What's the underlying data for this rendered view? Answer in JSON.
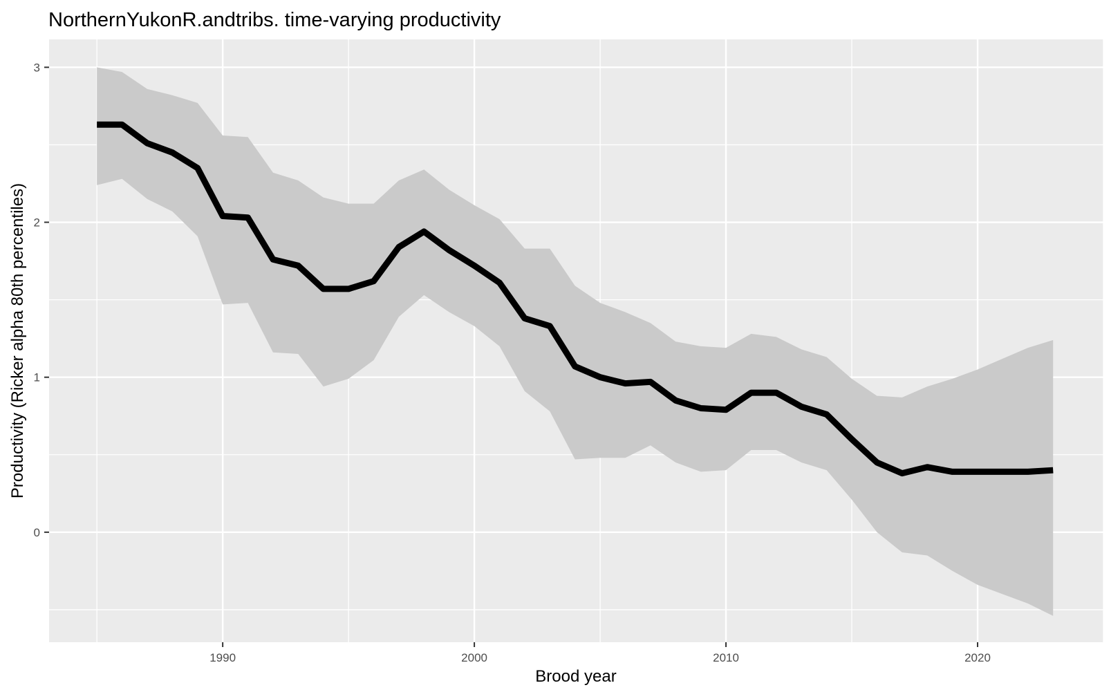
{
  "chart_data": {
    "type": "line",
    "title": "NorthernYukonR.andtribs. time-varying productivity",
    "xlabel": "Brood year",
    "ylabel": "Productivity (Ricker alpha 80th percentiles)",
    "xlim": [
      1983.1,
      2025.0
    ],
    "ylim": [
      -0.71,
      3.18
    ],
    "x_ticks": [
      1990,
      2000,
      2010,
      2020
    ],
    "y_ticks": [
      0,
      1,
      2,
      3
    ],
    "grid": true,
    "legend": "none",
    "colors": {
      "panel": "#ebebeb",
      "grid": "#ffffff",
      "ribbon": "#cacaca",
      "line": "#000000",
      "tick_text": "#4d4d4d"
    },
    "x": [
      1985,
      1986,
      1987,
      1988,
      1989,
      1990,
      1991,
      1992,
      1993,
      1994,
      1995,
      1996,
      1997,
      1998,
      1999,
      2000,
      2001,
      2002,
      2003,
      2004,
      2005,
      2006,
      2007,
      2008,
      2009,
      2010,
      2011,
      2012,
      2013,
      2014,
      2015,
      2016,
      2017,
      2018,
      2019,
      2020,
      2021,
      2022,
      2023
    ],
    "series": [
      {
        "role": "median",
        "values": [
          2.63,
          2.63,
          2.51,
          2.45,
          2.35,
          2.04,
          2.03,
          1.76,
          1.72,
          1.57,
          1.57,
          1.62,
          1.84,
          1.94,
          1.82,
          1.72,
          1.61,
          1.38,
          1.33,
          1.07,
          1.0,
          0.96,
          0.97,
          0.85,
          0.8,
          0.79,
          0.9,
          0.9,
          0.81,
          0.76,
          0.6,
          0.45,
          0.38,
          0.42,
          0.39,
          0.39,
          0.39,
          0.39,
          0.4
        ]
      },
      {
        "role": "lower_80",
        "values": [
          2.24,
          2.28,
          2.15,
          2.07,
          1.91,
          1.47,
          1.48,
          1.16,
          1.15,
          0.94,
          0.99,
          1.11,
          1.39,
          1.53,
          1.42,
          1.33,
          1.2,
          0.91,
          0.78,
          0.47,
          0.48,
          0.48,
          0.56,
          0.45,
          0.39,
          0.4,
          0.53,
          0.53,
          0.45,
          0.4,
          0.21,
          0.0,
          -0.13,
          -0.15,
          -0.25,
          -0.34,
          -0.4,
          -0.46,
          -0.54
        ]
      },
      {
        "role": "upper_80",
        "values": [
          3.0,
          2.97,
          2.86,
          2.82,
          2.77,
          2.56,
          2.55,
          2.32,
          2.27,
          2.16,
          2.12,
          2.12,
          2.27,
          2.34,
          2.21,
          2.11,
          2.02,
          1.83,
          1.83,
          1.59,
          1.48,
          1.42,
          1.35,
          1.23,
          1.2,
          1.19,
          1.28,
          1.26,
          1.18,
          1.13,
          0.99,
          0.88,
          0.87,
          0.94,
          0.99,
          1.05,
          1.12,
          1.19,
          1.24
        ]
      }
    ]
  }
}
